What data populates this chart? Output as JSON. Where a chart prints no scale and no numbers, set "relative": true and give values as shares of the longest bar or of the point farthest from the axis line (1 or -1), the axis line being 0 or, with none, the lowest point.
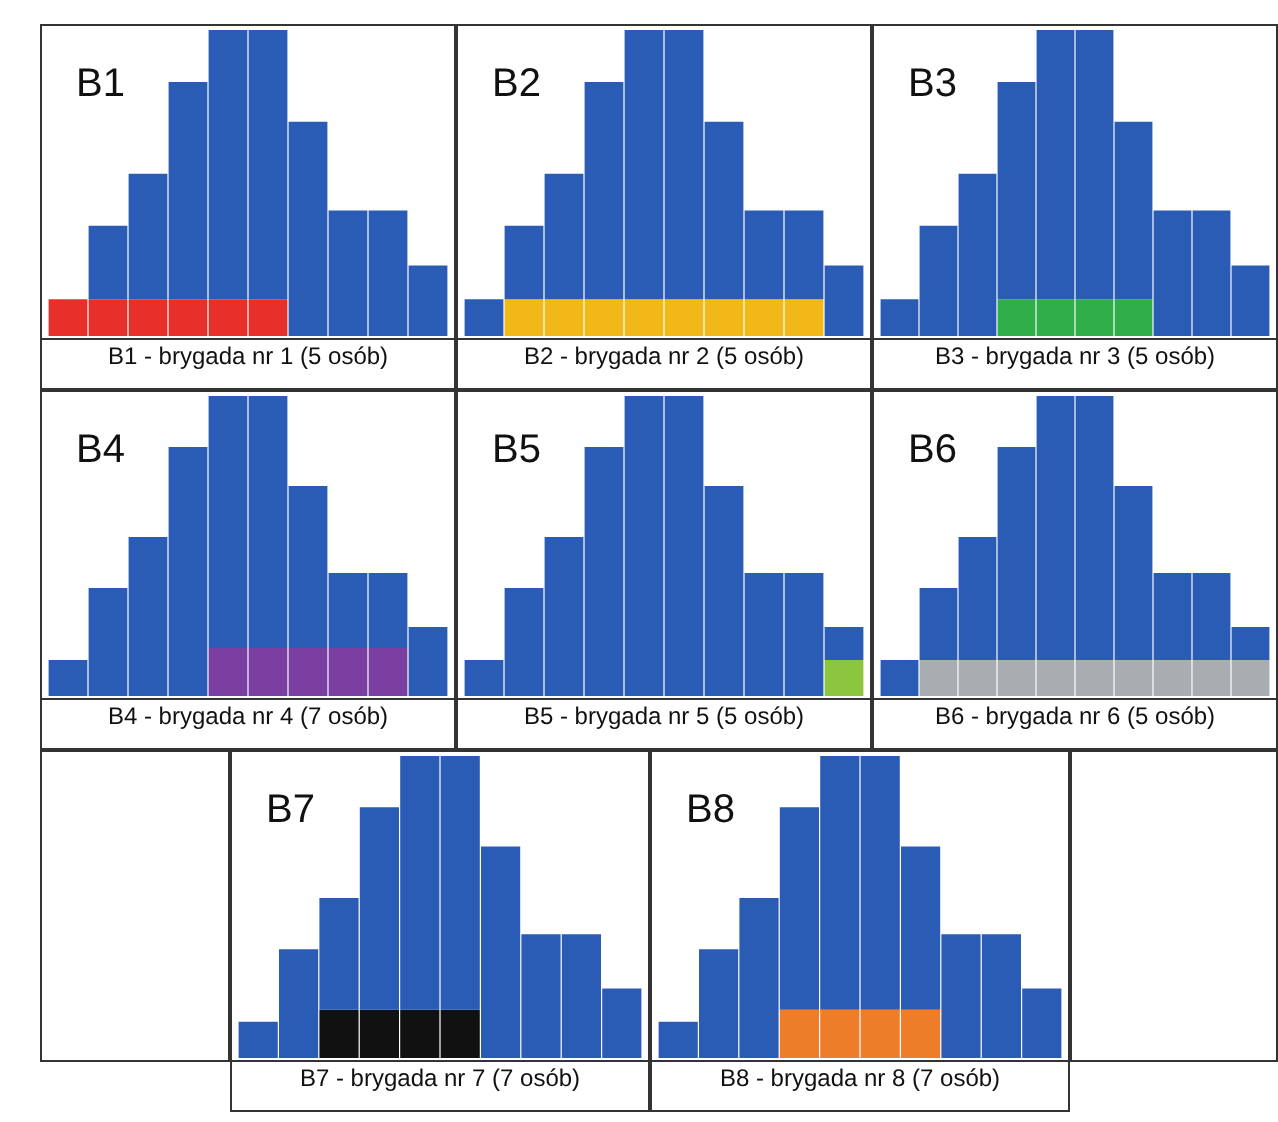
{
  "chart_data": [
    {
      "type": "bar",
      "title": "B1",
      "xlabel": "B1 - brygada nr 1 (5 osób)",
      "relative": true,
      "stacked": true,
      "categories": [
        null,
        null,
        null,
        null,
        null,
        null,
        null,
        null,
        null,
        null
      ],
      "series": [
        {
          "color": "#e8302a",
          "values": [
            0.12,
            0.12,
            0.12,
            0.12,
            0.12,
            0.12,
            0,
            0,
            0,
            0
          ]
        },
        {
          "color": "#2a5cb5",
          "values": [
            0,
            0.24,
            0.41,
            0.71,
            0.88,
            0.88,
            0.7,
            0.41,
            0.41,
            0.23
          ]
        }
      ]
    },
    {
      "type": "bar",
      "title": "B2",
      "xlabel": "B2 - brygada nr 2 (5 osób)",
      "relative": true,
      "stacked": true,
      "categories": [
        null,
        null,
        null,
        null,
        null,
        null,
        null,
        null,
        null,
        null
      ],
      "series": [
        {
          "color": "#f2b817",
          "values": [
            0,
            0.12,
            0.12,
            0.12,
            0.12,
            0.12,
            0.12,
            0.12,
            0.12,
            0
          ]
        },
        {
          "color": "#2a5cb5",
          "values": [
            0.12,
            0.24,
            0.41,
            0.71,
            0.88,
            0.88,
            0.58,
            0.29,
            0.29,
            0.23
          ]
        }
      ]
    },
    {
      "type": "bar",
      "title": "B3",
      "xlabel": "B3 - brygada nr 3 (5 osób)",
      "relative": true,
      "stacked": true,
      "categories": [
        null,
        null,
        null,
        null,
        null,
        null,
        null,
        null,
        null,
        null
      ],
      "series": [
        {
          "color": "#2fae4a",
          "values": [
            0,
            0,
            0,
            0.12,
            0.12,
            0.12,
            0.12,
            0,
            0,
            0
          ]
        },
        {
          "color": "#2a5cb5",
          "values": [
            0.12,
            0.36,
            0.53,
            0.71,
            0.88,
            0.88,
            0.58,
            0.41,
            0.41,
            0.23
          ]
        }
      ]
    },
    {
      "type": "bar",
      "title": "B4",
      "xlabel": "B4 - brygada nr 4 (7 osób)",
      "relative": true,
      "stacked": true,
      "categories": [
        null,
        null,
        null,
        null,
        null,
        null,
        null,
        null,
        null,
        null
      ],
      "series": [
        {
          "color": "#7a3fa0",
          "values": [
            0,
            0,
            0,
            0,
            0.16,
            0.16,
            0.16,
            0.16,
            0.16,
            0
          ]
        },
        {
          "color": "#2a5cb5",
          "values": [
            0.12,
            0.36,
            0.53,
            0.83,
            0.84,
            0.84,
            0.54,
            0.25,
            0.25,
            0.23
          ]
        }
      ]
    },
    {
      "type": "bar",
      "title": "B5",
      "xlabel": "B5 - brygada nr 5 (5 osób)",
      "relative": true,
      "stacked": true,
      "categories": [
        null,
        null,
        null,
        null,
        null,
        null,
        null,
        null,
        null,
        null
      ],
      "series": [
        {
          "color": "#8cc63f",
          "values": [
            0,
            0,
            0,
            0,
            0,
            0,
            0,
            0,
            0,
            0.12
          ]
        },
        {
          "color": "#2a5cb5",
          "values": [
            0.12,
            0.36,
            0.53,
            0.83,
            1,
            1,
            0.7,
            0.41,
            0.41,
            0.11
          ]
        }
      ]
    },
    {
      "type": "bar",
      "title": "B6",
      "xlabel": "B6 - brygada nr 6 (5 osób)",
      "relative": true,
      "stacked": true,
      "categories": [
        null,
        null,
        null,
        null,
        null,
        null,
        null,
        null,
        null,
        null
      ],
      "series": [
        {
          "color": "#a8adb2",
          "values": [
            0,
            0.12,
            0.12,
            0.12,
            0.12,
            0.12,
            0.12,
            0.12,
            0.12,
            0.12
          ]
        },
        {
          "color": "#2a5cb5",
          "values": [
            0.12,
            0.24,
            0.41,
            0.71,
            0.88,
            0.88,
            0.58,
            0.29,
            0.29,
            0.11
          ]
        }
      ]
    },
    {
      "type": "bar",
      "title": "B7",
      "xlabel": "B7 - brygada nr 7 (7 osób)",
      "relative": true,
      "stacked": true,
      "categories": [
        null,
        null,
        null,
        null,
        null,
        null,
        null,
        null,
        null,
        null
      ],
      "series": [
        {
          "color": "#111111",
          "values": [
            0,
            0,
            0.16,
            0.16,
            0.16,
            0.16,
            0,
            0,
            0,
            0
          ]
        },
        {
          "color": "#2a5cb5",
          "values": [
            0.12,
            0.36,
            0.37,
            0.67,
            0.84,
            0.84,
            0.7,
            0.41,
            0.41,
            0.23
          ]
        }
      ]
    },
    {
      "type": "bar",
      "title": "B8",
      "xlabel": "B8 - brygada nr 8 (7 osób)",
      "relative": true,
      "stacked": true,
      "categories": [
        null,
        null,
        null,
        null,
        null,
        null,
        null,
        null,
        null,
        null
      ],
      "series": [
        {
          "color": "#ee7d2a",
          "values": [
            0,
            0,
            0,
            0.16,
            0.16,
            0.16,
            0.16,
            0,
            0,
            0
          ]
        },
        {
          "color": "#2a5cb5",
          "values": [
            0.12,
            0.36,
            0.53,
            0.67,
            0.84,
            0.84,
            0.54,
            0.41,
            0.41,
            0.23
          ]
        }
      ]
    }
  ]
}
